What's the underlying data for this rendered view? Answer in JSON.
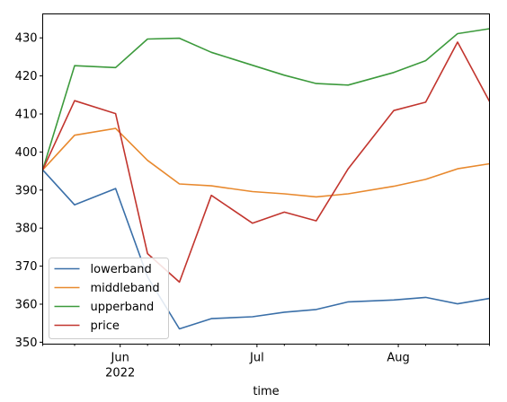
{
  "chart_data": {
    "type": "line",
    "x": [
      "2022-05-15",
      "2022-05-22",
      "2022-05-31",
      "2022-06-07",
      "2022-06-14",
      "2022-06-21",
      "2022-06-30",
      "2022-07-07",
      "2022-07-14",
      "2022-07-21",
      "2022-07-31",
      "2022-08-07",
      "2022-08-14",
      "2022-08-21"
    ],
    "series": [
      {
        "name": "lowerband",
        "color": "#3a6fa8",
        "values": [
          395.3,
          386.1,
          390.4,
          367.2,
          353.5,
          356.2,
          356.7,
          357.9,
          358.6,
          360.6,
          361.1,
          361.8,
          360.1,
          361.5
        ]
      },
      {
        "name": "middleband",
        "color": "#e8892e",
        "values": [
          395.3,
          404.4,
          406.2,
          397.8,
          391.6,
          391.1,
          389.6,
          389.0,
          388.2,
          389.0,
          391.0,
          392.8,
          395.6,
          396.9
        ]
      },
      {
        "name": "upperband",
        "color": "#3c9a3c",
        "values": [
          395.3,
          422.7,
          422.2,
          429.7,
          429.9,
          426.2,
          422.8,
          420.2,
          418.0,
          417.6,
          420.9,
          424.0,
          431.1,
          432.4
        ]
      },
      {
        "name": "price",
        "color": "#c2352e",
        "values": [
          395.3,
          413.5,
          410.1,
          373.3,
          365.8,
          388.6,
          381.3,
          384.2,
          381.9,
          395.6,
          410.9,
          413.1,
          428.9,
          413.3
        ]
      }
    ],
    "xlabel": "time",
    "ylabel": "",
    "xlim": [
      "2022-05-15",
      "2022-08-21"
    ],
    "ylim": [
      349.5,
      436.3
    ],
    "yticks": [
      350,
      360,
      370,
      380,
      390,
      400,
      410,
      420,
      430
    ],
    "xticks_major": [
      {
        "date": "2022-06-01",
        "label": "Jun",
        "sublabel": "2022"
      },
      {
        "date": "2022-07-01",
        "label": "Jul",
        "sublabel": ""
      },
      {
        "date": "2022-08-01",
        "label": "Aug",
        "sublabel": ""
      }
    ],
    "xticks_minor": [
      "2022-05-15",
      "2022-05-22",
      "2022-06-07",
      "2022-06-14",
      "2022-06-21",
      "2022-07-07",
      "2022-07-14",
      "2022-07-21",
      "2022-08-07",
      "2022-08-14",
      "2022-08-21"
    ],
    "legend": {
      "position": "lower-left",
      "entries": [
        "lowerband",
        "middleband",
        "upperband",
        "price"
      ]
    },
    "grid": false
  }
}
